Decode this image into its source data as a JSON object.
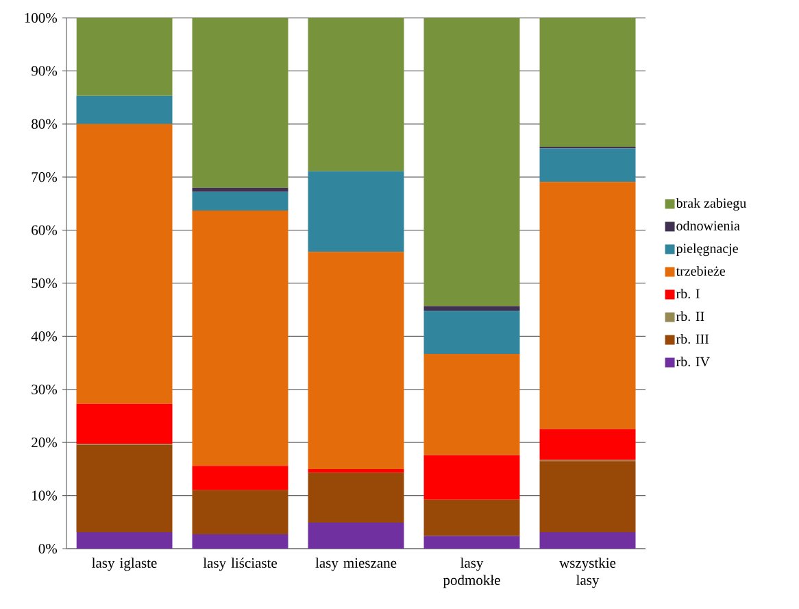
{
  "chart_data": {
    "type": "bar",
    "stacked": true,
    "categories": [
      "lasy iglaste",
      "lasy liściaste",
      "lasy mieszane",
      "lasy podmokłe",
      "wszystkie lasy"
    ],
    "series": [
      {
        "name": "rb. IV",
        "color": "#7030a0",
        "values": [
          3.1,
          2.7,
          4.9,
          2.4,
          3.1
        ]
      },
      {
        "name": "rb. III",
        "color": "#984807",
        "values": [
          16.4,
          8.3,
          9.4,
          6.8,
          13.4
        ]
      },
      {
        "name": "rb. II",
        "color": "#948a54",
        "values": [
          0.2,
          0,
          0,
          0,
          0.2
        ]
      },
      {
        "name": "rb. I",
        "color": "#ff0000",
        "values": [
          7.6,
          4.6,
          0.7,
          8.4,
          5.8
        ]
      },
      {
        "name": "trzebieże",
        "color": "#e46c0a",
        "values": [
          52.7,
          48.1,
          40.9,
          19.1,
          46.6
        ]
      },
      {
        "name": "pielęgnacje",
        "color": "#31859c",
        "values": [
          5.3,
          3.5,
          15.2,
          8.1,
          6.3
        ]
      },
      {
        "name": "odnowienia",
        "color": "#403151",
        "values": [
          0,
          0.8,
          0,
          0.9,
          0.3
        ]
      },
      {
        "name": "brak zabiegu",
        "color": "#77933c",
        "values": [
          14.7,
          32.0,
          28.9,
          54.3,
          24.4
        ]
      }
    ],
    "ylim": [
      0,
      100
    ],
    "yticks": [
      {
        "value": 0,
        "label": "0%"
      },
      {
        "value": 10,
        "label": "10%"
      },
      {
        "value": 20,
        "label": "20%"
      },
      {
        "value": 30,
        "label": "30%"
      },
      {
        "value": 40,
        "label": "40%"
      },
      {
        "value": 50,
        "label": "50%"
      },
      {
        "value": 60,
        "label": "60%"
      },
      {
        "value": 70,
        "label": "70%"
      },
      {
        "value": 80,
        "label": "80%"
      },
      {
        "value": 90,
        "label": "90%"
      },
      {
        "value": 100,
        "label": "100%"
      }
    ],
    "grid": "y",
    "legend": "right"
  }
}
